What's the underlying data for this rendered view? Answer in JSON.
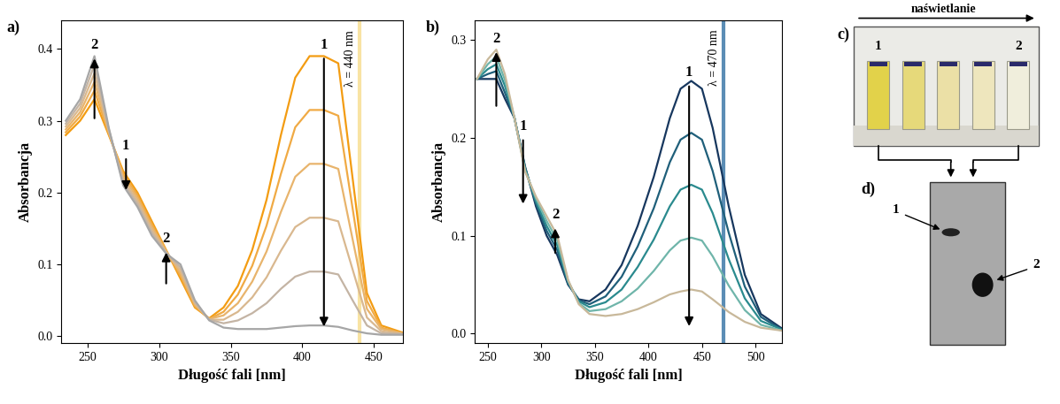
{
  "chart_data": [
    {
      "type": "line",
      "title": "a)",
      "x_label": "Długość fali [nm]",
      "y_label": "Absorbancja",
      "x": [
        235,
        245,
        255,
        265,
        275,
        285,
        295,
        305,
        315,
        325,
        335,
        345,
        355,
        365,
        375,
        385,
        395,
        405,
        415,
        425,
        435,
        445,
        455,
        470
      ],
      "series": [
        {
          "color": "#f39c12",
          "values": [
            0.28,
            0.3,
            0.33,
            0.28,
            0.23,
            0.2,
            0.16,
            0.12,
            0.08,
            0.04,
            0.025,
            0.04,
            0.07,
            0.12,
            0.19,
            0.28,
            0.36,
            0.39,
            0.39,
            0.38,
            0.22,
            0.06,
            0.015,
            0.005
          ]
        },
        {
          "color": "#f0aa44",
          "values": [
            0.284,
            0.306,
            0.342,
            0.282,
            0.226,
            0.196,
            0.156,
            0.119,
            0.084,
            0.042,
            0.024,
            0.034,
            0.058,
            0.098,
            0.154,
            0.226,
            0.291,
            0.315,
            0.315,
            0.307,
            0.178,
            0.049,
            0.012,
            0.004
          ]
        },
        {
          "color": "#e8b46c",
          "values": [
            0.288,
            0.312,
            0.354,
            0.284,
            0.222,
            0.192,
            0.152,
            0.118,
            0.088,
            0.044,
            0.024,
            0.029,
            0.046,
            0.076,
            0.118,
            0.173,
            0.222,
            0.24,
            0.24,
            0.233,
            0.135,
            0.038,
            0.01,
            0.004
          ]
        },
        {
          "color": "#d9b88f",
          "values": [
            0.292,
            0.318,
            0.366,
            0.286,
            0.218,
            0.188,
            0.148,
            0.117,
            0.092,
            0.046,
            0.023,
            0.023,
            0.034,
            0.054,
            0.082,
            0.119,
            0.152,
            0.165,
            0.165,
            0.16,
            0.093,
            0.026,
            0.007,
            0.003
          ]
        },
        {
          "color": "#c4b4a4",
          "values": [
            0.296,
            0.324,
            0.378,
            0.288,
            0.214,
            0.184,
            0.144,
            0.116,
            0.096,
            0.048,
            0.023,
            0.018,
            0.022,
            0.032,
            0.046,
            0.066,
            0.083,
            0.09,
            0.09,
            0.086,
            0.05,
            0.015,
            0.004,
            0.003
          ]
        },
        {
          "color": "#a6a6a6",
          "values": [
            0.3,
            0.33,
            0.39,
            0.29,
            0.21,
            0.18,
            0.14,
            0.115,
            0.1,
            0.05,
            0.022,
            0.012,
            0.01,
            0.01,
            0.01,
            0.012,
            0.014,
            0.015,
            0.015,
            0.013,
            0.008,
            0.004,
            0.002,
            0.002
          ]
        }
      ],
      "xlim": [
        232,
        470
      ],
      "xticks": [
        250,
        300,
        350,
        400,
        450
      ],
      "ylim": [
        -0.01,
        0.44
      ],
      "yticks": [
        0.0,
        0.1,
        0.2,
        0.3,
        0.4
      ],
      "grid": false,
      "annotations": [
        {
          "text": "1",
          "x": 415,
          "y_from": 0.39,
          "y_to": 0.01
        },
        {
          "text": "2",
          "x": 255,
          "y_from": 0.3,
          "y_to": 0.39
        },
        {
          "text": "1",
          "x": 277,
          "y_from": 0.25,
          "y_to": 0.2
        },
        {
          "text": "2",
          "x": 305,
          "y_from": 0.07,
          "y_to": 0.12
        }
      ],
      "reference_lines": [
        {
          "x": 440,
          "text": "λ = 440 nm",
          "color": "#f8e3a3"
        }
      ]
    },
    {
      "type": "line",
      "title": "b)",
      "x_label": "Długość fali [nm]",
      "y_label": "Absorbancja",
      "x": [
        240,
        250,
        258,
        266,
        275,
        285,
        295,
        305,
        315,
        325,
        335,
        345,
        360,
        375,
        390,
        405,
        420,
        430,
        440,
        450,
        460,
        475,
        490,
        505,
        525
      ],
      "series": [
        {
          "color": "#17375e",
          "values": [
            0.26,
            0.26,
            0.26,
            0.24,
            0.22,
            0.17,
            0.13,
            0.1,
            0.08,
            0.05,
            0.035,
            0.033,
            0.045,
            0.07,
            0.11,
            0.16,
            0.22,
            0.25,
            0.258,
            0.25,
            0.21,
            0.13,
            0.06,
            0.02,
            0.005
          ]
        },
        {
          "color": "#1f5f7a",
          "values": [
            0.26,
            0.265,
            0.268,
            0.246,
            0.22,
            0.169,
            0.133,
            0.105,
            0.085,
            0.051,
            0.034,
            0.03,
            0.038,
            0.058,
            0.089,
            0.128,
            0.175,
            0.198,
            0.205,
            0.198,
            0.166,
            0.103,
            0.048,
            0.017,
            0.004
          ]
        },
        {
          "color": "#2a8a8e",
          "values": [
            0.26,
            0.27,
            0.275,
            0.253,
            0.22,
            0.168,
            0.135,
            0.11,
            0.09,
            0.053,
            0.033,
            0.027,
            0.032,
            0.045,
            0.068,
            0.096,
            0.13,
            0.147,
            0.152,
            0.147,
            0.123,
            0.076,
            0.036,
            0.013,
            0.004
          ]
        },
        {
          "color": "#6fb5aa",
          "values": [
            0.26,
            0.275,
            0.283,
            0.259,
            0.22,
            0.166,
            0.138,
            0.115,
            0.095,
            0.054,
            0.031,
            0.023,
            0.025,
            0.033,
            0.046,
            0.064,
            0.085,
            0.095,
            0.098,
            0.095,
            0.079,
            0.049,
            0.024,
            0.009,
            0.003
          ]
        },
        {
          "color": "#c8b89a",
          "values": [
            0.26,
            0.28,
            0.29,
            0.265,
            0.22,
            0.165,
            0.14,
            0.12,
            0.1,
            0.055,
            0.03,
            0.02,
            0.018,
            0.02,
            0.025,
            0.032,
            0.04,
            0.043,
            0.045,
            0.043,
            0.035,
            0.022,
            0.012,
            0.006,
            0.003
          ]
        }
      ],
      "xlim": [
        238,
        525
      ],
      "xticks": [
        250,
        300,
        350,
        400,
        450,
        500
      ],
      "ylim": [
        -0.01,
        0.32
      ],
      "yticks": [
        0.0,
        0.1,
        0.2,
        0.3
      ],
      "grid": false,
      "annotations": [
        {
          "text": "1",
          "x": 438,
          "y_from": 0.255,
          "y_to": 0.005
        },
        {
          "text": "2",
          "x": 258,
          "y_from": 0.23,
          "y_to": 0.29
        },
        {
          "text": "1",
          "x": 283,
          "y_from": 0.2,
          "y_to": 0.13
        },
        {
          "text": "2",
          "x": 313,
          "y_from": 0.08,
          "y_to": 0.11
        }
      ],
      "reference_lines": [
        {
          "x": 470,
          "text": "λ = 470 nm",
          "color": "#5b8db5"
        }
      ]
    }
  ],
  "photo": {
    "title": "c)",
    "arrow_text": "naświetlanie",
    "cuvette_labels": [
      "1",
      "2"
    ]
  },
  "gel": {
    "title": "d)",
    "band_labels": [
      "1",
      "2"
    ]
  }
}
